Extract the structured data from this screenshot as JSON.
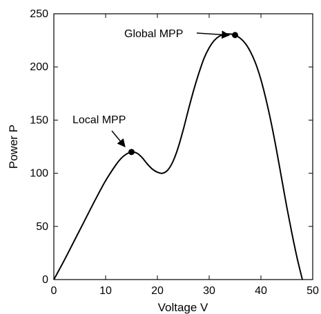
{
  "chart_data": {
    "type": "line",
    "title": "",
    "xlabel": "Voltage V",
    "ylabel": "Power P",
    "xlim": [
      0,
      50
    ],
    "ylim": [
      0,
      250
    ],
    "xticks": [
      0,
      10,
      20,
      30,
      40,
      50
    ],
    "yticks": [
      0,
      50,
      100,
      150,
      200,
      250
    ],
    "grid": false,
    "series": [
      {
        "x": [
          0,
          2,
          4,
          6,
          8,
          10,
          12,
          13,
          14,
          15,
          16,
          17,
          18,
          19,
          20,
          21,
          22,
          23,
          24,
          25,
          26,
          27,
          28,
          29,
          30,
          31,
          32,
          33,
          34,
          35,
          36,
          37,
          38,
          39,
          40,
          41,
          42,
          43,
          44,
          45,
          46,
          47,
          48
        ],
        "y": [
          0,
          18,
          37,
          56,
          75,
          93,
          108,
          114,
          118,
          120,
          119,
          115,
          109,
          104,
          101,
          100,
          103,
          111,
          124,
          141,
          160,
          178,
          194,
          208,
          218,
          225,
          229,
          231,
          231,
          230,
          227,
          222,
          214,
          203,
          188,
          169,
          147,
          122,
          95,
          68,
          43,
          20,
          0
        ],
        "color": "#000000"
      }
    ],
    "points": [
      {
        "x": 15,
        "y": 120,
        "label": "Local MPP"
      },
      {
        "x": 35,
        "y": 230,
        "label": "Global MPP"
      }
    ]
  }
}
